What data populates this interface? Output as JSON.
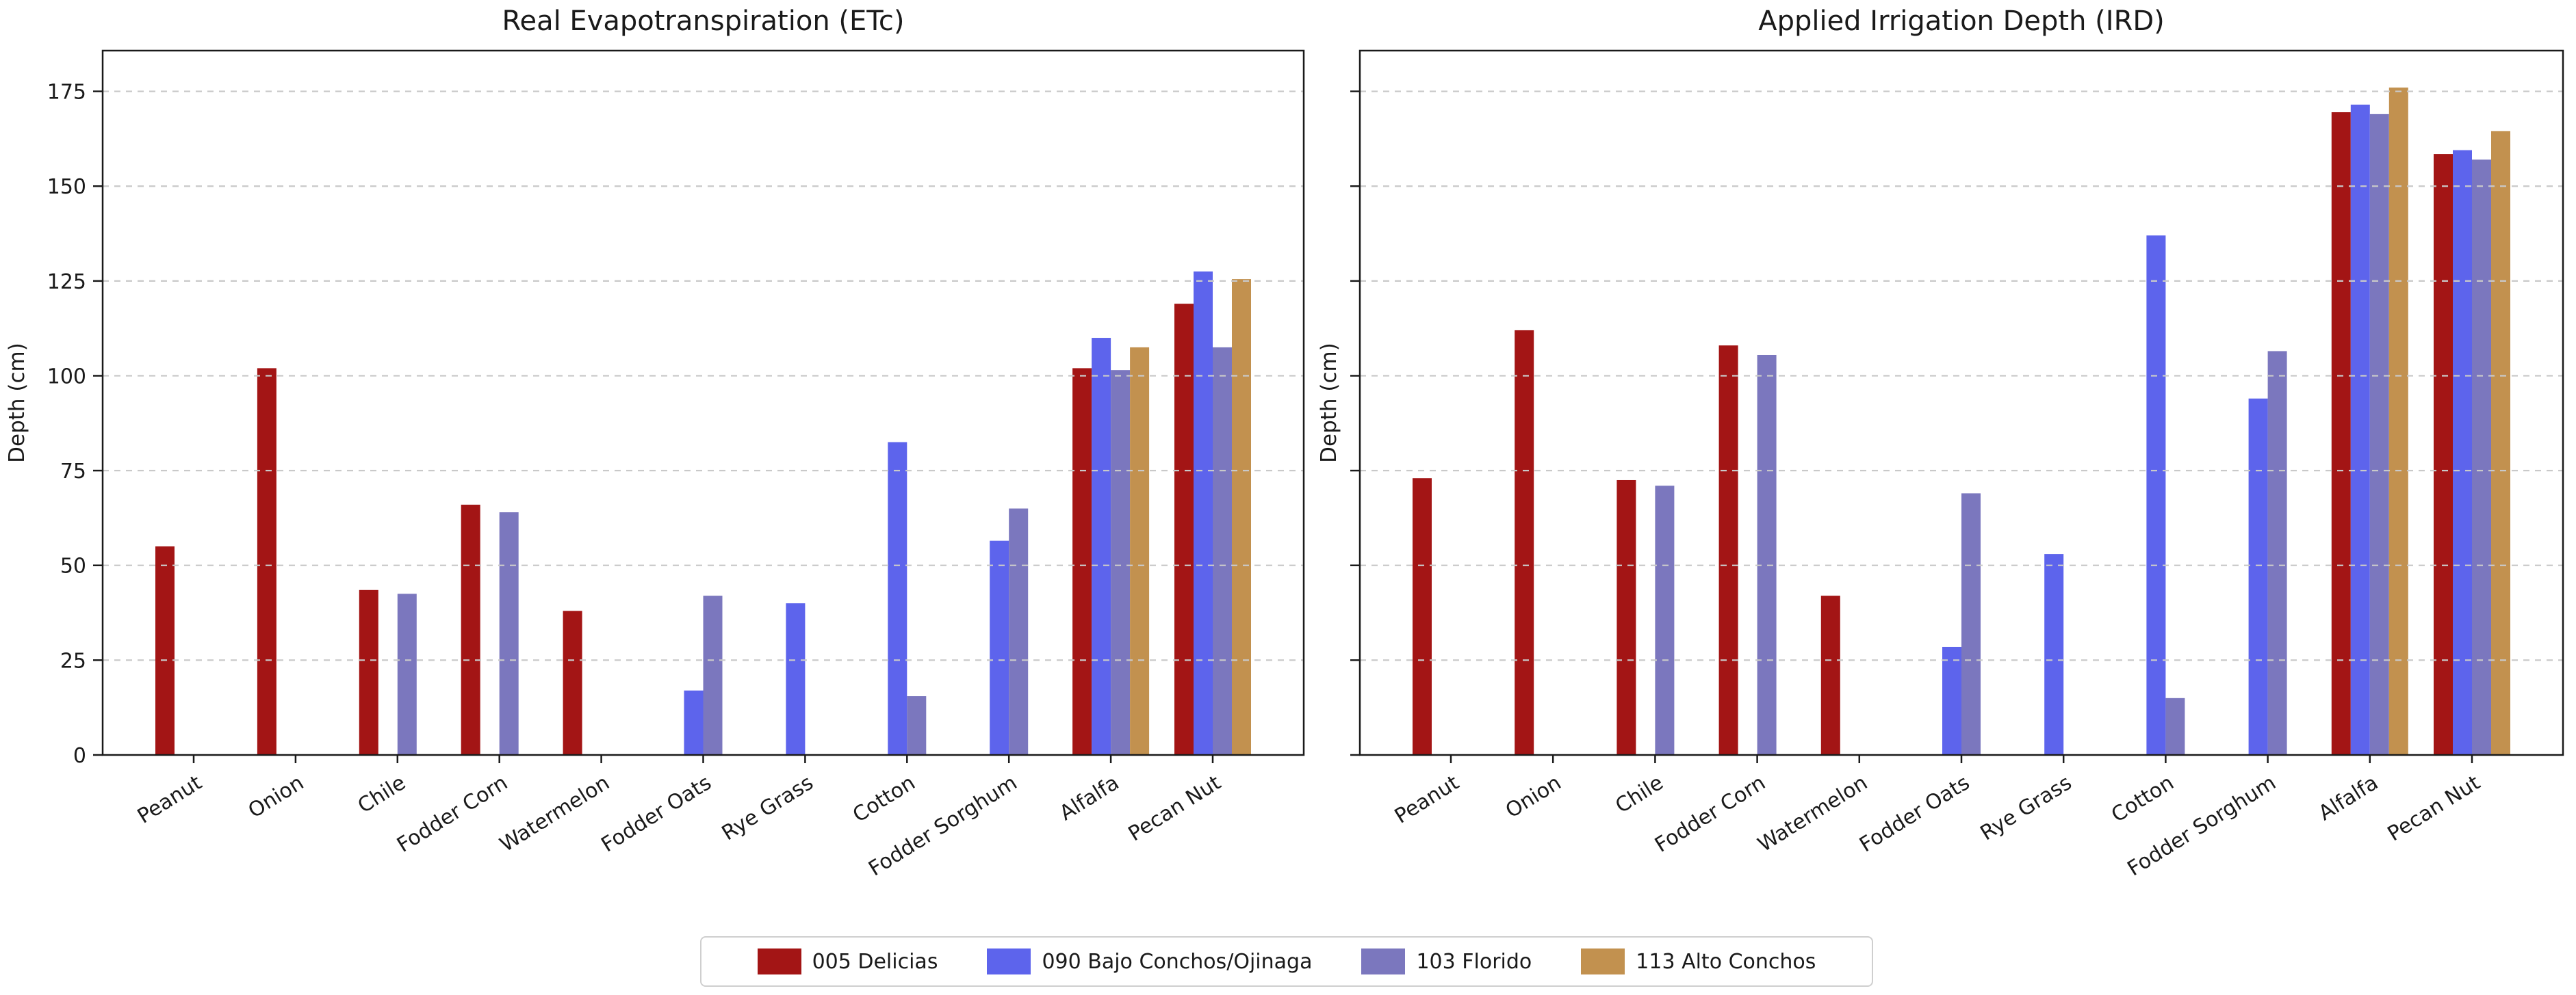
{
  "figure": {
    "background": "#ffffff"
  },
  "chart_data": [
    {
      "type": "bar",
      "title": "Real Evapotranspiration (ETc)",
      "ylabel": "Depth (cm)",
      "categories": [
        "Peanut",
        "Onion",
        "Chile",
        "Fodder Corn",
        "Watermelon",
        "Fodder Oats",
        "Rye Grass",
        "Cotton",
        "Fodder Sorghum",
        "Alfalfa",
        "Pecan Nut"
      ],
      "yticks": [
        0,
        25,
        50,
        75,
        100,
        125,
        150,
        175
      ],
      "ylim": [
        0,
        186
      ],
      "show_ytick_labels": true,
      "grid": "horizontal-dashed-above-bars",
      "legend_position": "bottom-center",
      "series": [
        {
          "name": "005 Delicias",
          "color": "#a31515",
          "values": [
            55,
            102,
            43.5,
            66,
            38,
            null,
            null,
            null,
            null,
            102,
            119
          ]
        },
        {
          "name": "090 Bajo Conchos/Ojinaga",
          "color": "#5d64ec",
          "values": [
            null,
            null,
            null,
            null,
            null,
            17,
            40,
            82.5,
            56.5,
            110,
            127.5
          ]
        },
        {
          "name": "103 Florido",
          "color": "#7b77be",
          "values": [
            null,
            null,
            42.5,
            64,
            null,
            42,
            null,
            15.5,
            65,
            101.5,
            107.5
          ]
        },
        {
          "name": "113 Alto Conchos",
          "color": "#c2914f",
          "values": [
            null,
            null,
            null,
            null,
            null,
            null,
            null,
            null,
            null,
            107.5,
            125.5
          ]
        }
      ]
    },
    {
      "type": "bar",
      "title": "Applied Irrigation Depth (IRD)",
      "ylabel": "Depth (cm)",
      "categories": [
        "Peanut",
        "Onion",
        "Chile",
        "Fodder Corn",
        "Watermelon",
        "Fodder Oats",
        "Rye Grass",
        "Cotton",
        "Fodder Sorghum",
        "Alfalfa",
        "Pecan Nut"
      ],
      "yticks": [
        0,
        25,
        50,
        75,
        100,
        125,
        150,
        175
      ],
      "ylim": [
        0,
        186
      ],
      "show_ytick_labels": false,
      "grid": "horizontal-dashed-above-bars",
      "legend_position": "bottom-center",
      "series": [
        {
          "name": "005 Delicias",
          "color": "#a31515",
          "values": [
            73,
            112,
            72.5,
            108,
            42,
            null,
            null,
            null,
            null,
            169.5,
            158.5
          ]
        },
        {
          "name": "090 Bajo Conchos/Ojinaga",
          "color": "#5d64ec",
          "values": [
            null,
            null,
            null,
            null,
            null,
            28.5,
            53,
            137,
            94,
            171.5,
            159.5
          ]
        },
        {
          "name": "103 Florido",
          "color": "#7b77be",
          "values": [
            null,
            null,
            71,
            105.5,
            null,
            69,
            null,
            15,
            106.5,
            169,
            157
          ]
        },
        {
          "name": "113 Alto Conchos",
          "color": "#c2914f",
          "values": [
            null,
            null,
            null,
            null,
            null,
            null,
            null,
            null,
            null,
            176,
            164.5
          ]
        }
      ]
    }
  ]
}
